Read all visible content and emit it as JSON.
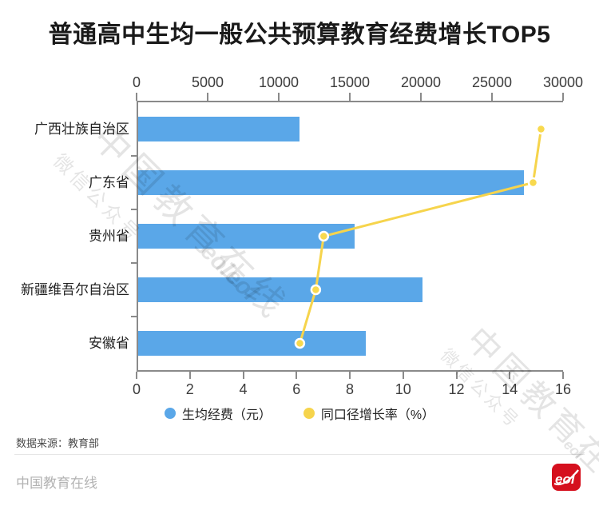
{
  "title": "普通高中生均一般公共预算教育经费增长TOP5",
  "chart_data": {
    "type": "bar",
    "orientation": "horizontal",
    "title": "普通高中生均一般公共预算教育经费增长TOP5",
    "categories": [
      "广西壮族自治区",
      "广东省",
      "贵州省",
      "新疆维吾尔自治区",
      "安徽省"
    ],
    "series": [
      {
        "name": "生均经费（元）",
        "type": "bar",
        "axis": "top",
        "color": "#5AA7E8",
        "values": [
          11400,
          27300,
          15300,
          20100,
          16100
        ]
      },
      {
        "name": "同口径增长率（%）",
        "type": "line",
        "axis": "bottom",
        "color": "#F6D44C",
        "marker_fill": "#F8D94E",
        "values": [
          15.2,
          14.9,
          7.0,
          6.7,
          6.1
        ]
      }
    ],
    "top_axis": {
      "min": 0,
      "max": 30000,
      "ticks": [
        0,
        5000,
        10000,
        15000,
        20000,
        25000,
        30000
      ]
    },
    "bottom_axis": {
      "min": 0,
      "max": 16,
      "ticks": [
        0,
        2,
        4,
        6,
        8,
        10,
        12,
        14,
        16
      ]
    },
    "grid": false,
    "legend_position": "bottom"
  },
  "legend": {
    "items": [
      {
        "label": "生均经费（元）",
        "color": "#5AA7E8"
      },
      {
        "label": "同口径增长率（%）",
        "color": "#F6D44C"
      }
    ]
  },
  "source_note": "数据来源：教育部",
  "footer": {
    "brand": "中国教育在线",
    "logo_text": "eol"
  },
  "watermarks": [
    "中国教育在线",
    "微信公众号",
    "eoleol",
    "中国教育在线",
    "微信公众号",
    "eol"
  ],
  "colors": {
    "bar_blue": "#5AA7E8",
    "line_yellow": "#F6D44C",
    "marker_yellow": "#F8D94E",
    "axis_gray": "#8a8a8a",
    "logo_red": "#D5101E",
    "title_black": "#1a1a1a"
  }
}
